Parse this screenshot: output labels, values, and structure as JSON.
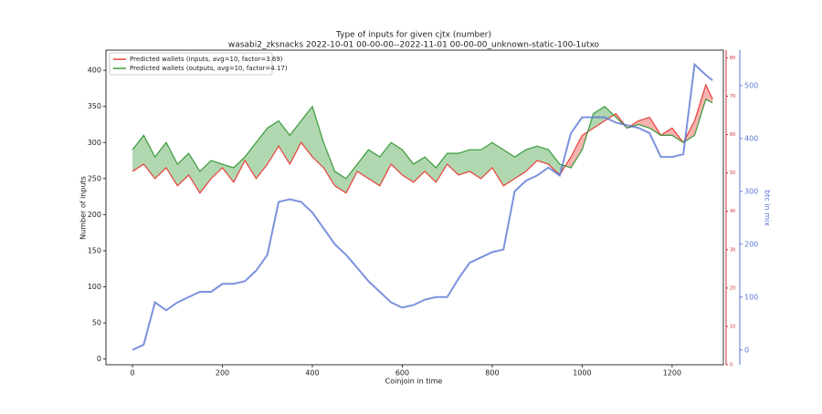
{
  "chart_data": {
    "type": "line",
    "title": "Type of inputs for given cjtx (number)",
    "subtitle": "wasabi2_zksnacks 2022-10-01 00-00-00--2022-11-01 00-00-00_unknown-static-100-1utxo",
    "x_label": "Coinjoin in time",
    "y_label": "Number of inputs",
    "y2_label": "btc in mix",
    "x": [
      0,
      25,
      50,
      75,
      100,
      125,
      150,
      175,
      200,
      225,
      250,
      275,
      300,
      325,
      350,
      375,
      400,
      425,
      450,
      475,
      500,
      525,
      550,
      575,
      600,
      625,
      650,
      675,
      700,
      725,
      750,
      775,
      800,
      825,
      850,
      875,
      900,
      925,
      950,
      975,
      1000,
      1025,
      1050,
      1075,
      1100,
      1125,
      1150,
      1175,
      1200,
      1225,
      1250,
      1275,
      1290
    ],
    "series": [
      {
        "name": "Predicted wallets (inputs, avg=10, factor=3.69)",
        "color": "#e8403a",
        "values": [
          260,
          270,
          250,
          265,
          240,
          255,
          230,
          250,
          265,
          245,
          275,
          250,
          270,
          295,
          270,
          300,
          280,
          265,
          240,
          230,
          260,
          250,
          240,
          270,
          255,
          245,
          260,
          245,
          270,
          255,
          260,
          250,
          265,
          240,
          250,
          260,
          275,
          270,
          255,
          280,
          310,
          320,
          330,
          340,
          320,
          330,
          335,
          310,
          320,
          300,
          330,
          380,
          360
        ]
      },
      {
        "name": "Predicted wallets (outputs, avg=10, factor=4.17)",
        "color": "#3a9a3a",
        "values": [
          290,
          310,
          280,
          300,
          270,
          285,
          260,
          275,
          270,
          265,
          280,
          300,
          320,
          330,
          310,
          330,
          350,
          300,
          260,
          250,
          270,
          290,
          280,
          300,
          290,
          270,
          280,
          265,
          285,
          285,
          290,
          290,
          300,
          290,
          280,
          290,
          295,
          290,
          270,
          265,
          290,
          340,
          350,
          335,
          320,
          325,
          320,
          310,
          310,
          300,
          310,
          360,
          355
        ]
      },
      {
        "name": "btc in mix",
        "color": "#5b76d6",
        "axis": "y2",
        "values": [
          0,
          10,
          90,
          75,
          90,
          100,
          110,
          110,
          125,
          125,
          130,
          150,
          180,
          280,
          285,
          280,
          260,
          230,
          200,
          180,
          155,
          130,
          110,
          90,
          80,
          85,
          95,
          100,
          100,
          135,
          165,
          175,
          185,
          190,
          300,
          320,
          330,
          345,
          330,
          410,
          440,
          440,
          440,
          430,
          425,
          420,
          410,
          365,
          365,
          370,
          540,
          520,
          510
        ]
      }
    ],
    "xlim": [
      -59,
      1314
    ],
    "xticks": [
      0,
      200,
      400,
      600,
      800,
      1000,
      1200
    ],
    "ylim": [
      -8,
      428
    ],
    "yticks": [
      0,
      50,
      100,
      150,
      200,
      250,
      300,
      350,
      400
    ],
    "y2lim": [
      -28,
      567
    ],
    "y2ticks": [
      0,
      100,
      200,
      300,
      400,
      500
    ],
    "y3lim": [
      0,
      82
    ],
    "y3ticks": [
      0,
      10,
      20,
      30,
      40,
      50,
      60,
      70,
      80
    ],
    "legend": "upper left"
  }
}
